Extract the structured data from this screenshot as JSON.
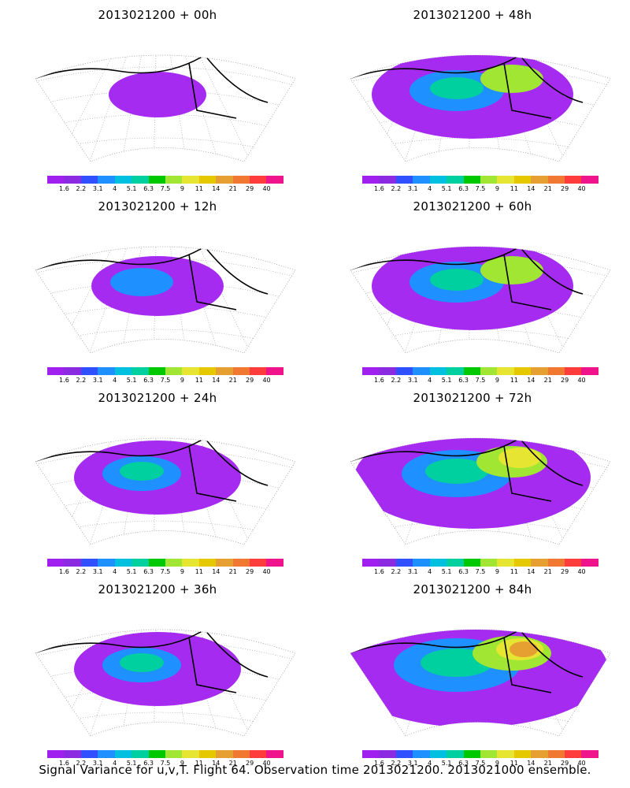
{
  "panels": [
    {
      "title": "2013021200 + 00h",
      "level": 1
    },
    {
      "title": "2013021200 + 48h",
      "level": 4
    },
    {
      "title": "2013021200 + 12h",
      "level": 2
    },
    {
      "title": "2013021200 + 60h",
      "level": 4
    },
    {
      "title": "2013021200 + 24h",
      "level": 3
    },
    {
      "title": "2013021200 + 72h",
      "level": 5
    },
    {
      "title": "2013021200 + 36h",
      "level": 3
    },
    {
      "title": "2013021200 + 84h",
      "level": 6
    }
  ],
  "colorbar": {
    "colors": [
      "#a020f0",
      "#8a2be2",
      "#3050ff",
      "#1e90ff",
      "#00c0e0",
      "#00d0a0",
      "#00c800",
      "#a0e632",
      "#e6e632",
      "#e6c800",
      "#e6a032",
      "#f07830",
      "#ff3c3c",
      "#f0148c"
    ],
    "labels": [
      "1.6",
      "2.2",
      "3.1",
      "4",
      "5.1",
      "6.3",
      "7.5",
      "9",
      "11",
      "14",
      "21",
      "29",
      "40"
    ]
  },
  "caption": "Signal Variance for u,v,T. Flight 64. Observation time 2013021200. 2013021000 ensemble."
}
